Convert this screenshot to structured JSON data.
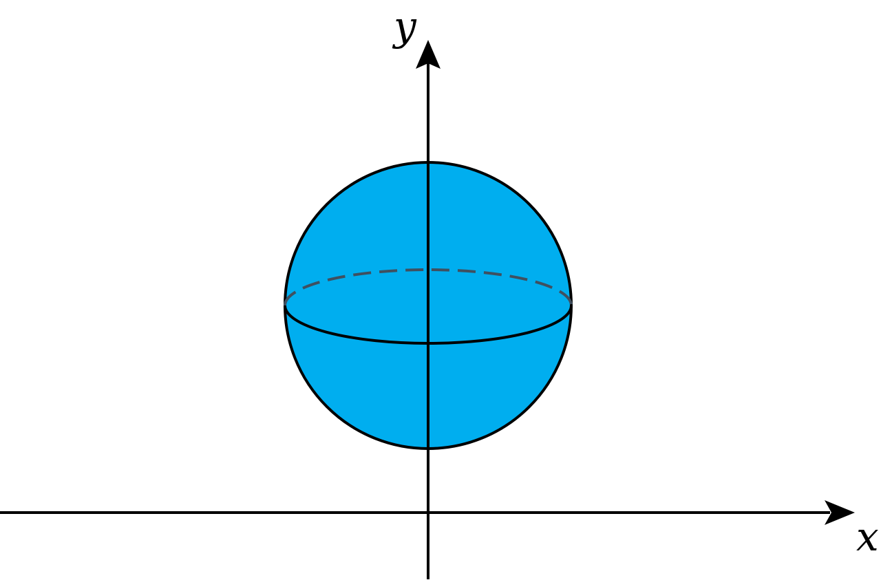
{
  "diagram": {
    "x_axis_label": "x",
    "y_axis_label": "y",
    "colors": {
      "sphere_fill": "#00AEEF",
      "outline": "#000000",
      "hidden_equator": "#3F5060",
      "background": "#FFFFFF"
    }
  }
}
